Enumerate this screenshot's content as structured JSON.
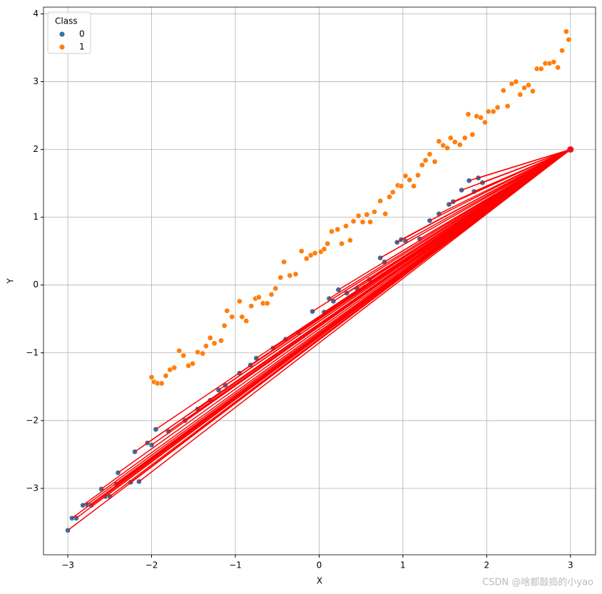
{
  "chart_data": {
    "type": "scatter",
    "xlabel": "X",
    "ylabel": "Y",
    "legend_title": "Class",
    "legend": "upper left",
    "grid": true,
    "xlim": [
      -3.29,
      3.3
    ],
    "ylim": [
      -3.98,
      4.1
    ],
    "xticks": [
      {
        "value": -3,
        "label": "−3"
      },
      {
        "value": -2,
        "label": "−2"
      },
      {
        "value": -1,
        "label": "−1"
      },
      0,
      1,
      2,
      3
    ],
    "yticks": [
      {
        "value": -3,
        "label": "−3"
      },
      {
        "value": -2,
        "label": "−2"
      },
      {
        "value": -1,
        "label": "−1"
      },
      0,
      1,
      2,
      3,
      4
    ],
    "line_color": "red",
    "target": {
      "x": 3,
      "y": 2,
      "color": "#e8141e"
    },
    "series": [
      {
        "name": "0",
        "color": "#3274a1",
        "x": [
          -3.0,
          -2.95,
          -2.9,
          -2.82,
          -2.77,
          -2.72,
          -2.6,
          -2.55,
          -2.5,
          -2.42,
          -2.4,
          -2.25,
          -2.2,
          -2.15,
          -2.05,
          -2.0,
          -1.95,
          -1.8,
          -1.6,
          -1.45,
          -1.3,
          -1.2,
          -1.12,
          -0.95,
          -0.82,
          -0.75,
          -0.55,
          -0.4,
          -0.25,
          -0.08,
          0.06,
          0.12,
          0.17,
          0.23,
          0.33,
          0.45,
          0.6,
          0.73,
          0.78,
          0.93,
          0.98,
          1.03,
          1.2,
          1.32,
          1.43,
          1.55,
          1.6,
          1.7,
          1.79,
          1.85,
          1.9,
          1.95
        ],
        "y": [
          -3.62,
          -3.44,
          -3.44,
          -3.25,
          -3.24,
          -3.25,
          -3.01,
          -3.12,
          -3.12,
          -2.94,
          -2.77,
          -2.91,
          -2.46,
          -2.9,
          -2.33,
          -2.36,
          -2.13,
          -2.16,
          -2.0,
          -1.83,
          -1.7,
          -1.55,
          -1.48,
          -1.3,
          -1.18,
          -1.08,
          -0.93,
          -0.8,
          -0.7,
          -0.39,
          -0.4,
          -0.2,
          -0.24,
          -0.07,
          -0.12,
          -0.05,
          0.08,
          0.4,
          0.34,
          0.63,
          0.67,
          0.65,
          0.68,
          0.95,
          1.05,
          1.19,
          1.23,
          1.4,
          1.54,
          1.38,
          1.58,
          1.51
        ]
      },
      {
        "name": "1",
        "color": "#ff7f0e",
        "x": [
          -2.0,
          -1.97,
          -1.93,
          -1.88,
          -1.83,
          -1.78,
          -1.73,
          -1.67,
          -1.62,
          -1.56,
          -1.51,
          -1.45,
          -1.39,
          -1.35,
          -1.3,
          -1.25,
          -1.17,
          -1.13,
          -1.1,
          -1.04,
          -0.95,
          -0.92,
          -0.87,
          -0.81,
          -0.76,
          -0.72,
          -0.67,
          -0.62,
          -0.57,
          -0.52,
          -0.46,
          -0.42,
          -0.35,
          -0.28,
          -0.21,
          -0.15,
          -0.1,
          -0.05,
          0.02,
          0.06,
          0.1,
          0.15,
          0.22,
          0.27,
          0.32,
          0.37,
          0.41,
          0.47,
          0.52,
          0.57,
          0.61,
          0.66,
          0.73,
          0.79,
          0.84,
          0.88,
          0.94,
          0.98,
          1.03,
          1.08,
          1.13,
          1.18,
          1.23,
          1.27,
          1.32,
          1.38,
          1.43,
          1.48,
          1.53,
          1.57,
          1.62,
          1.68,
          1.74,
          1.78,
          1.83,
          1.88,
          1.93,
          1.98,
          2.02,
          2.08,
          2.13,
          2.2,
          2.25,
          2.3,
          2.35,
          2.4,
          2.45,
          2.5,
          2.55,
          2.6,
          2.65,
          2.7,
          2.75,
          2.8,
          2.85,
          2.9,
          2.95,
          2.98
        ],
        "y": [
          -1.36,
          -1.43,
          -1.45,
          -1.45,
          -1.34,
          -1.25,
          -1.22,
          -0.97,
          -1.04,
          -1.19,
          -1.16,
          -0.99,
          -1.01,
          -0.9,
          -0.78,
          -0.86,
          -0.82,
          -0.6,
          -0.38,
          -0.47,
          -0.24,
          -0.47,
          -0.53,
          -0.31,
          -0.2,
          -0.18,
          -0.27,
          -0.27,
          -0.14,
          -0.05,
          0.11,
          0.34,
          0.14,
          0.16,
          0.5,
          0.39,
          0.44,
          0.47,
          0.49,
          0.53,
          0.61,
          0.79,
          0.82,
          0.61,
          0.87,
          0.66,
          0.94,
          1.02,
          0.93,
          1.04,
          0.93,
          1.08,
          1.24,
          1.05,
          1.3,
          1.37,
          1.47,
          1.46,
          1.61,
          1.55,
          1.46,
          1.62,
          1.77,
          1.84,
          1.93,
          1.82,
          2.12,
          2.06,
          2.02,
          2.17,
          2.11,
          2.07,
          2.17,
          2.52,
          2.22,
          2.49,
          2.47,
          2.4,
          2.56,
          2.56,
          2.62,
          2.87,
          2.64,
          2.97,
          3.0,
          2.81,
          2.91,
          2.95,
          2.86,
          3.19,
          3.19,
          3.27,
          3.27,
          3.29,
          3.21,
          3.46,
          3.74,
          3.62
        ]
      }
    ],
    "watermark": "CSDN @啥都鼓捣的小yao"
  }
}
